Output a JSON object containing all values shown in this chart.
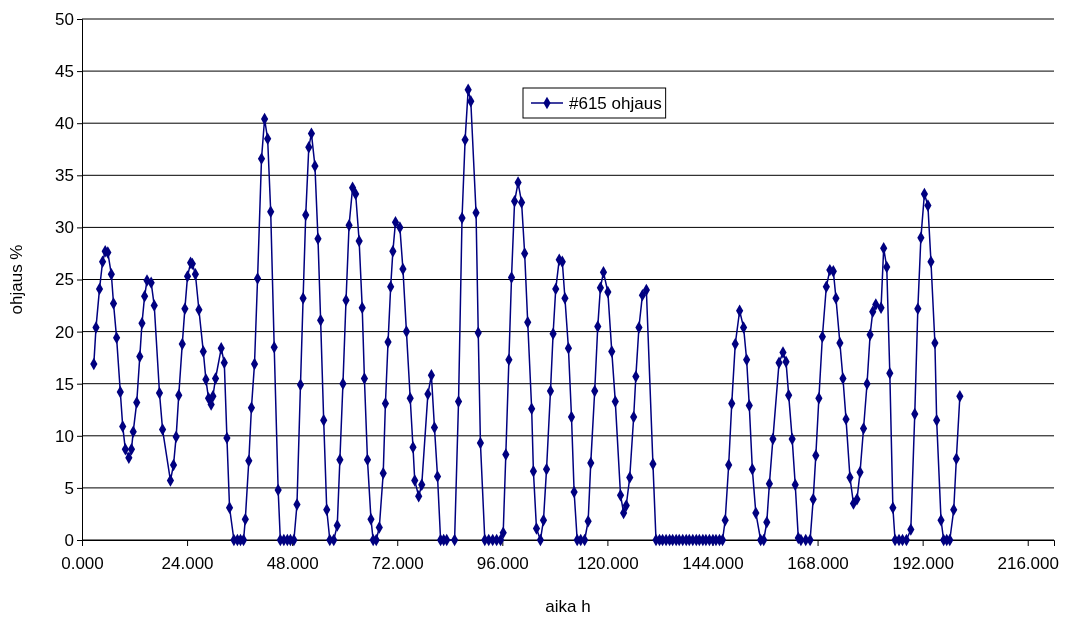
{
  "chart_data": {
    "type": "line",
    "xlabel": "aika h",
    "ylabel": "ohjaus %",
    "xlim": [
      0,
      222
    ],
    "ylim": [
      0,
      50
    ],
    "xticks": [
      {
        "value": 0,
        "label": "0.000"
      },
      {
        "value": 24,
        "label": "24.000"
      },
      {
        "value": 48,
        "label": "48.000"
      },
      {
        "value": 72,
        "label": "72.000"
      },
      {
        "value": 96,
        "label": "96.000"
      },
      {
        "value": 120,
        "label": "120.000"
      },
      {
        "value": 144,
        "label": "144.000"
      },
      {
        "value": 168,
        "label": "168.000"
      },
      {
        "value": 192,
        "label": "192.000"
      },
      {
        "value": 216,
        "label": "216.000"
      }
    ],
    "yticks": [
      0,
      5,
      10,
      15,
      20,
      25,
      30,
      35,
      40,
      45,
      50
    ],
    "grid": "y",
    "legend": "top",
    "marker": "diamond",
    "line_style": "solid",
    "x": [
      2.7,
      3.2,
      4.0,
      4.7,
      5.3,
      5.9,
      6.7,
      7.2,
      7.9,
      8.75,
      9.3,
      9.9,
      10.7,
      11.3,
      11.7,
      12.5,
      13.2,
      13.7,
      14.3,
      14.85,
      15.8,
      16.5,
      17.7,
      18.4,
      20.2,
      20.9,
      21.5,
      22.1,
      22.9,
      23.5,
      24.1,
      24.8,
      25.2,
      25.9,
      26.7,
      27.7,
      28.3,
      28.9,
      29.5,
      29.9,
      30.5,
      31.8,
      32.5,
      33.1,
      33.7,
      34.7,
      35.5,
      36.2,
      36.9,
      37.3,
      38.1,
      38.7,
      39.4,
      40.1,
      41.0,
      41.7,
      42.4,
      43.1,
      43.9,
      44.8,
      45.3,
      46.1,
      46.9,
      47.6,
      48.4,
      49.1,
      49.9,
      50.5,
      51.1,
      51.8,
      52.4,
      53.2,
      53.9,
      54.5,
      55.2,
      55.9,
      56.6,
      57.5,
      58.3,
      58.9,
      59.6,
      60.3,
      61.0,
      61.8,
      62.5,
      63.3,
      64.0,
      64.5,
      65.2,
      66.0,
      66.5,
      67.2,
      67.9,
      68.8,
      69.3,
      69.9,
      70.5,
      71.0,
      71.6,
      72.6,
      73.3,
      74.1,
      74.96,
      75.6,
      76.0,
      76.9,
      77.6,
      79.0,
      79.8,
      80.5,
      81.2,
      81.9,
      82.6,
      83.3,
      85.1,
      86.0,
      86.8,
      87.5,
      88.2,
      88.8,
      90.0,
      90.5,
      91.0,
      92.0,
      92.9,
      93.8,
      94.7,
      95.6,
      96.2,
      96.8,
      97.5,
      98.1,
      98.8,
      99.6,
      100.4,
      101.1,
      101.8,
      102.7,
      103.1,
      103.8,
      104.7,
      105.4,
      106.1,
      107.0,
      107.6,
      108.2,
      109.0,
      109.7,
      110.3,
      111.1,
      111.8,
      112.4,
      113.1,
      113.9,
      114.8,
      115.6,
      116.2,
      117.1,
      117.8,
      118.4,
      119.1,
      120.1,
      121.0,
      121.8,
      123.0,
      123.7,
      124.3,
      125.1,
      126.0,
      126.5,
      127.2,
      128.0,
      128.9,
      130.4,
      131.1,
      131.9,
      132.6,
      133.4,
      134.2,
      134.9,
      135.7,
      136.4,
      137.2,
      138.0,
      138.7,
      139.5,
      140.3,
      141.0,
      141.8,
      142.5,
      143.3,
      144.1,
      144.8,
      145.6,
      146.3,
      146.9,
      147.7,
      148.4,
      149.2,
      150.2,
      151.1,
      151.8,
      152.4,
      153.1,
      153.9,
      155.0,
      155.7,
      156.4,
      157.0,
      157.8,
      159.2,
      160.1,
      160.8,
      161.4,
      162.2,
      162.9,
      163.6,
      164.2,
      165.3,
      166.3,
      167.0,
      167.6,
      168.3,
      169.1,
      170.0,
      170.8,
      171.6,
      172.2,
      173.1,
      173.8,
      174.5,
      175.4,
      176.2,
      177.0,
      177.7,
      178.5,
      179.3,
      180.0,
      180.6,
      181.3,
      182.5,
      183.1,
      183.8,
      184.5,
      185.2,
      185.7,
      186.6,
      187.4,
      188.3,
      189.3,
      190.2,
      190.9,
      191.6,
      192.4,
      193.2,
      193.9,
      194.8,
      195.2,
      196.2,
      196.8,
      197.5,
      198.2,
      199.1,
      199.7,
      200.5
    ],
    "series": [
      {
        "name": "#615 ohjaus",
        "color": "#000080",
        "values": [
          16.9,
          20.4,
          24.1,
          26.7,
          27.7,
          27.6,
          25.5,
          22.7,
          19.4,
          14.2,
          10.9,
          8.7,
          7.9,
          8.7,
          10.4,
          13.2,
          17.6,
          20.8,
          23.4,
          24.9,
          24.7,
          22.5,
          14.1,
          10.6,
          5.7,
          7.2,
          9.9,
          13.9,
          18.8,
          22.2,
          25.3,
          26.6,
          26.5,
          25.5,
          22.1,
          18.1,
          15.4,
          13.6,
          13.0,
          13.8,
          15.5,
          18.4,
          17.0,
          9.8,
          3.1,
          0,
          0,
          0,
          0,
          2.0,
          7.6,
          12.7,
          16.9,
          25.1,
          36.6,
          40.4,
          38.5,
          31.5,
          18.5,
          4.8,
          0,
          0,
          0,
          0,
          0,
          3.4,
          14.9,
          23.2,
          31.2,
          37.7,
          39.0,
          35.9,
          28.9,
          21.1,
          11.5,
          2.9,
          0,
          0,
          1.4,
          7.7,
          15.0,
          23.0,
          30.2,
          33.8,
          33.2,
          28.7,
          22.3,
          15.5,
          7.7,
          2.0,
          0,
          0,
          1.2,
          6.4,
          13.1,
          19.0,
          24.3,
          27.7,
          30.5,
          30.0,
          26.0,
          20.0,
          13.6,
          8.9,
          5.7,
          4.2,
          5.3,
          14.0,
          15.8,
          10.8,
          6.1,
          0,
          0,
          0,
          0,
          13.3,
          30.9,
          38.4,
          43.2,
          42.1,
          31.4,
          19.9,
          9.3,
          0,
          0,
          0,
          0,
          0,
          0.7,
          8.2,
          17.3,
          25.2,
          32.5,
          34.3,
          32.4,
          27.5,
          20.9,
          12.6,
          6.6,
          1.1,
          0,
          1.9,
          6.8,
          14.3,
          19.8,
          24.1,
          26.9,
          26.7,
          23.2,
          18.4,
          11.8,
          4.6,
          0,
          0,
          0,
          1.8,
          7.4,
          14.3,
          20.5,
          24.2,
          25.7,
          23.8,
          18.1,
          13.3,
          4.3,
          2.6,
          3.3,
          6.0,
          11.8,
          15.7,
          20.4,
          23.5,
          24.0,
          7.3,
          0,
          0,
          0,
          0,
          0,
          0,
          0,
          0,
          0,
          0,
          0,
          0,
          0,
          0,
          0,
          0,
          0,
          0,
          0,
          0,
          0,
          1.9,
          7.2,
          13.1,
          18.8,
          22.0,
          20.4,
          17.3,
          12.9,
          6.8,
          2.6,
          0,
          0,
          1.7,
          5.4,
          9.7,
          17.0,
          18.0,
          17.1,
          13.9,
          9.7,
          5.3,
          0.2,
          0,
          0,
          0,
          3.9,
          8.1,
          13.6,
          19.5,
          24.3,
          25.9,
          25.8,
          23.2,
          18.9,
          15.5,
          11.6,
          6.0,
          3.5,
          3.9,
          6.5,
          10.7,
          15.0,
          19.7,
          21.9,
          22.6,
          22.3,
          28.0,
          26.2,
          16.0,
          3.1,
          0,
          0,
          0,
          0,
          1.0,
          12.1,
          22.2,
          29.0,
          33.2,
          32.1,
          26.7,
          18.9,
          11.5,
          1.9,
          0,
          0,
          0,
          2.9,
          7.8,
          13.8
        ]
      }
    ]
  }
}
